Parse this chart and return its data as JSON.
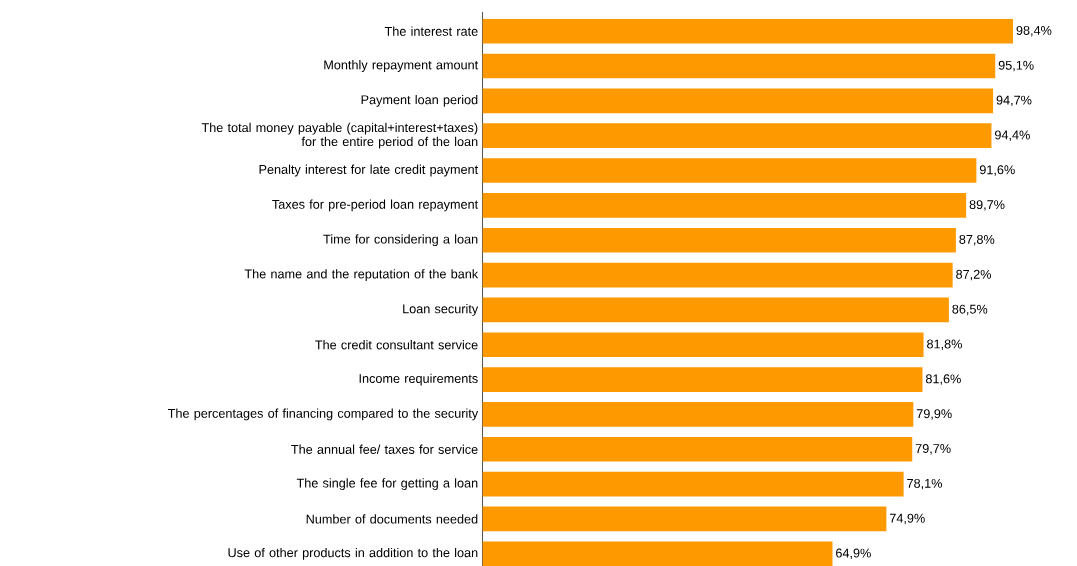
{
  "chart_data": {
    "type": "bar",
    "orientation": "horizontal",
    "color": "#ff9900",
    "categories": [
      "The interest rate",
      "Monthly repayment amount",
      "Payment loan period",
      "The total money payable (capital+interest+taxes) for the entire period of the loan",
      "Penalty interest for late credit payment",
      "Taxes for pre-period loan repayment",
      "Time for considering a loan",
      "The name and the reputation of the bank",
      "Loan security",
      "The credit consultant service",
      "Income requirements",
      "The percentages of financing compared to the security",
      "The annual fee/ taxes for service",
      "The single fee for getting a loan",
      "Number of documents needed",
      "Use of other products in addition to the loan"
    ],
    "values": [
      98.4,
      95.1,
      94.7,
      94.4,
      91.6,
      89.7,
      87.8,
      87.2,
      86.5,
      81.8,
      81.6,
      79.9,
      79.7,
      78.1,
      74.9,
      64.9
    ],
    "value_labels": [
      "98,4%",
      "95,1%",
      "94,7%",
      "94,4%",
      "91,6%",
      "89,7%",
      "87,8%",
      "87,2%",
      "86,5%",
      "81,8%",
      "81,6%",
      "79,9%",
      "79,7%",
      "78,1%",
      "74,9%",
      "64,9%"
    ],
    "tick_labels": "y"
  }
}
